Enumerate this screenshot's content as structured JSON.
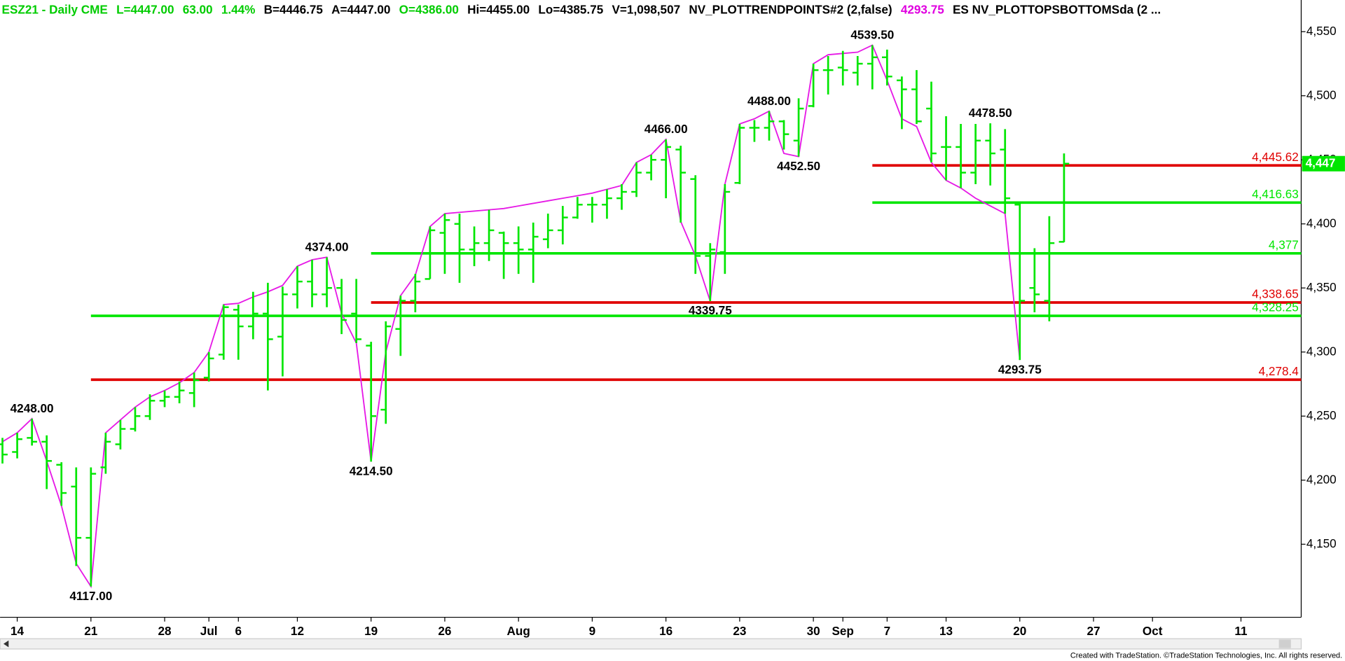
{
  "header": {
    "segments": [
      {
        "text": "ESZ21 - Daily  CME",
        "color": "#00cc00"
      },
      {
        "text": "L=4447.00",
        "color": "#00cc00"
      },
      {
        "text": "63.00",
        "color": "#00cc00"
      },
      {
        "text": "1.44%",
        "color": "#00cc00"
      },
      {
        "text": "B=4446.75",
        "color": "#000000"
      },
      {
        "text": "A=4447.00",
        "color": "#000000"
      },
      {
        "text": "O=4386.00",
        "color": "#00cc00"
      },
      {
        "text": "Hi=4455.00",
        "color": "#000000"
      },
      {
        "text": "Lo=4385.75",
        "color": "#000000"
      },
      {
        "text": "V=1,098,507",
        "color": "#000000"
      },
      {
        "text": "NV_PLOTTRENDPOINTS#2 (2,false)",
        "color": "#000000"
      },
      {
        "text": "4293.75",
        "color": "#e000e0"
      },
      {
        "text": "ES NV_PLOTTOPSBOTTOMSda (2 ...",
        "color": "#000000"
      }
    ]
  },
  "footer": "Created with TradeStation. ©TradeStation Technologies, Inc. All rights reserved.",
  "chart_data": {
    "type": "ohlc",
    "color": "#00e600",
    "categories": [
      null,
      "14",
      null,
      null,
      null,
      null,
      "21",
      null,
      null,
      null,
      null,
      "28",
      null,
      null,
      "Jul",
      null,
      "6",
      null,
      null,
      null,
      "12",
      null,
      null,
      null,
      null,
      "19",
      null,
      null,
      null,
      null,
      "26",
      null,
      null,
      null,
      null,
      "Aug",
      null,
      null,
      null,
      null,
      "9",
      null,
      null,
      null,
      null,
      "16",
      null,
      null,
      null,
      null,
      "23",
      null,
      null,
      null,
      null,
      "30",
      null,
      "Sep",
      null,
      null,
      "7",
      null,
      null,
      null,
      "13",
      null,
      null,
      null,
      null,
      "20",
      null,
      null,
      null,
      null,
      "27",
      null,
      null,
      null,
      "Oct",
      null,
      null,
      null,
      null,
      null,
      "11",
      null,
      null,
      null,
      null
    ],
    "open": [
      4228,
      4222,
      4233,
      4230,
      4212,
      4195,
      4155,
      4210,
      4228,
      4240,
      4250,
      4262,
      4265,
      4268,
      4280,
      4298,
      4333,
      4320,
      4330,
      4312,
      4345,
      4355,
      4345,
      4350,
      4330,
      4305,
      4255,
      4318,
      4340,
      4357,
      4393,
      4400,
      4380,
      4385,
      4393,
      4385,
      4380,
      4388,
      4395,
      4405,
      4415,
      4415,
      4420,
      4425,
      4440,
      4450,
      4458,
      4435,
      4375,
      4378,
      4432,
      4475,
      4475,
      4480,
      4465,
      4492,
      4520,
      4522,
      4518,
      4525,
      4530,
      4512,
      4505,
      4490,
      4460,
      4460,
      4440,
      4465,
      4458,
      4415,
      4350,
      4340,
      4386,
      null,
      null,
      null,
      null,
      null,
      null,
      null,
      null,
      null,
      null,
      null,
      null,
      null,
      null,
      null,
      null
    ],
    "high": [
      4233,
      4237,
      4248,
      4235,
      4214,
      4210,
      4210,
      4237,
      4247,
      4257,
      4267,
      4270,
      4277,
      4284,
      4300,
      4337,
      4337,
      4347,
      4354,
      4351,
      4367,
      4372,
      4374,
      4357,
      4357,
      4308,
      4324,
      4344,
      4361,
      4398,
      4408,
      4408,
      4398,
      4411,
      4394,
      4398,
      4401,
      4408,
      4414,
      4421,
      4421,
      4427,
      4431,
      4448,
      4454,
      4466,
      4461,
      4438,
      4385,
      4431,
      4478,
      4481,
      4488,
      4481,
      4498,
      4525,
      4531,
      4535,
      4531,
      4539.5,
      4536,
      4515,
      4520,
      4511,
      4484,
      4478,
      4478,
      4478.5,
      4474,
      4417,
      4381,
      4406,
      4455,
      null,
      null,
      null,
      null,
      null,
      null,
      null,
      null,
      null,
      null,
      null,
      null,
      null,
      null,
      null,
      null
    ],
    "low": [
      4213,
      4217,
      4227,
      4193,
      4180,
      4133,
      4117,
      4205,
      4224,
      4238,
      4247,
      4257,
      4260,
      4257,
      4277,
      4294,
      4294,
      4310,
      4270,
      4281,
      4334,
      4335,
      4335,
      4314,
      4307,
      4214.5,
      4244,
      4297,
      4331,
      4357,
      4361,
      4354,
      4367,
      4371,
      4357,
      4361,
      4354,
      4381,
      4384,
      4404,
      4401,
      4404,
      4411,
      4421,
      4434,
      4420,
      4401,
      4361,
      4339.75,
      4361,
      4431,
      4464,
      4465,
      4458,
      4452.5,
      4491,
      4501,
      4508,
      4508,
      4505,
      4508,
      4474,
      4478,
      4448,
      4434,
      4428,
      4431,
      4430,
      4408,
      4293.75,
      4331,
      4324,
      4385.75,
      null,
      null,
      null,
      null,
      null,
      null,
      null,
      null,
      null,
      null,
      null,
      null,
      null,
      null,
      null,
      null
    ],
    "close": [
      4220,
      4232,
      4230,
      4215,
      4190,
      4155,
      4205,
      4230,
      4240,
      4250,
      4262,
      4265,
      4270,
      4278,
      4295,
      4335,
      4320,
      4330,
      4310,
      4345,
      4355,
      4345,
      4350,
      4325,
      4310,
      4250,
      4320,
      4340,
      4355,
      4395,
      4403,
      4380,
      4385,
      4395,
      4385,
      4380,
      4390,
      4395,
      4405,
      4415,
      4415,
      4420,
      4425,
      4440,
      4450,
      4460,
      4440,
      4375,
      4380,
      4425,
      4475,
      4475,
      4480,
      4470,
      4490,
      4520,
      4520,
      4520,
      4525,
      4530,
      4515,
      4505,
      4480,
      4455,
      4460,
      4440,
      4465,
      4455,
      4420,
      4340,
      4345,
      4385,
      4447,
      null,
      null,
      null,
      null,
      null,
      null,
      null,
      null,
      null,
      null,
      null,
      null,
      null,
      null,
      null,
      null
    ],
    "trend_line": {
      "color": "#e619e6",
      "values": [
        4230,
        4237,
        4248,
        4215,
        4180,
        4135,
        4117,
        4237,
        4247,
        4257,
        4265,
        4270,
        4276,
        4284,
        4300,
        4337,
        4338,
        4343,
        4347,
        4352,
        4367,
        4372,
        4374,
        4330,
        4307,
        4214.5,
        4300,
        4344,
        4360,
        4398,
        4408,
        4409,
        4410,
        4411,
        4412,
        4414,
        4416,
        4418,
        4420,
        4422,
        4424,
        4427,
        4430,
        4448,
        4454,
        4466,
        4402,
        4375,
        4339.75,
        4431,
        4478,
        4482,
        4488,
        4455,
        4452.5,
        4525,
        4532,
        4533,
        4534,
        4539.5,
        4512,
        4482,
        4476,
        4448,
        4434,
        4428,
        4420,
        4414,
        4408,
        4293.75,
        null,
        null,
        null,
        null,
        null,
        null,
        null,
        null,
        null,
        null,
        null,
        null,
        null,
        null,
        null,
        null,
        null,
        null,
        null
      ]
    },
    "pivots": [
      {
        "value": 4248,
        "label": "4248.00"
      },
      {
        "value": 4117,
        "label": "4117.00"
      },
      {
        "value": 4374,
        "label": "4374.00"
      },
      {
        "value": 4214.5,
        "label": "4214.50"
      },
      {
        "value": 4466,
        "label": "4466.00"
      },
      {
        "value": 4339.75,
        "label": "4339.75"
      },
      {
        "value": 4488,
        "label": "4488.00"
      },
      {
        "value": 4452.5,
        "label": "4452.50"
      },
      {
        "value": 4539.5,
        "label": "4539.50"
      },
      {
        "value": 4478.5,
        "label": "4478.50"
      },
      {
        "value": 4293.75,
        "label": "4293.75"
      }
    ],
    "levels": [
      {
        "value": 4445.62,
        "label": "4,445.62",
        "color": "#e00000"
      },
      {
        "value": 4416.63,
        "label": "4,416.63",
        "color": "#00e600"
      },
      {
        "value": 4377,
        "label": "4,377",
        "color": "#00e600"
      },
      {
        "value": 4338.65,
        "label": "4,338.65",
        "color": "#e00000"
      },
      {
        "value": 4328.25,
        "label": "4,328.25",
        "color": "#00e600"
      },
      {
        "value": 4278.4,
        "label": "4,278.4",
        "color": "#e00000"
      }
    ],
    "last_price": {
      "value": 4447,
      "label": "4,447",
      "color": "#00e600"
    },
    "ylim": [
      4093,
      4560
    ],
    "yticks": [
      {
        "value": 4550,
        "label": "4,550"
      },
      {
        "value": 4500,
        "label": "4,500"
      },
      {
        "value": 4450,
        "label": "4,450"
      },
      {
        "value": 4400,
        "label": "4,400"
      },
      {
        "value": 4350,
        "label": "4,350"
      },
      {
        "value": 4300,
        "label": "4,300"
      },
      {
        "value": 4250,
        "label": "4,250"
      },
      {
        "value": 4200,
        "label": "4,200"
      },
      {
        "value": 4150,
        "label": "4,150"
      }
    ]
  }
}
